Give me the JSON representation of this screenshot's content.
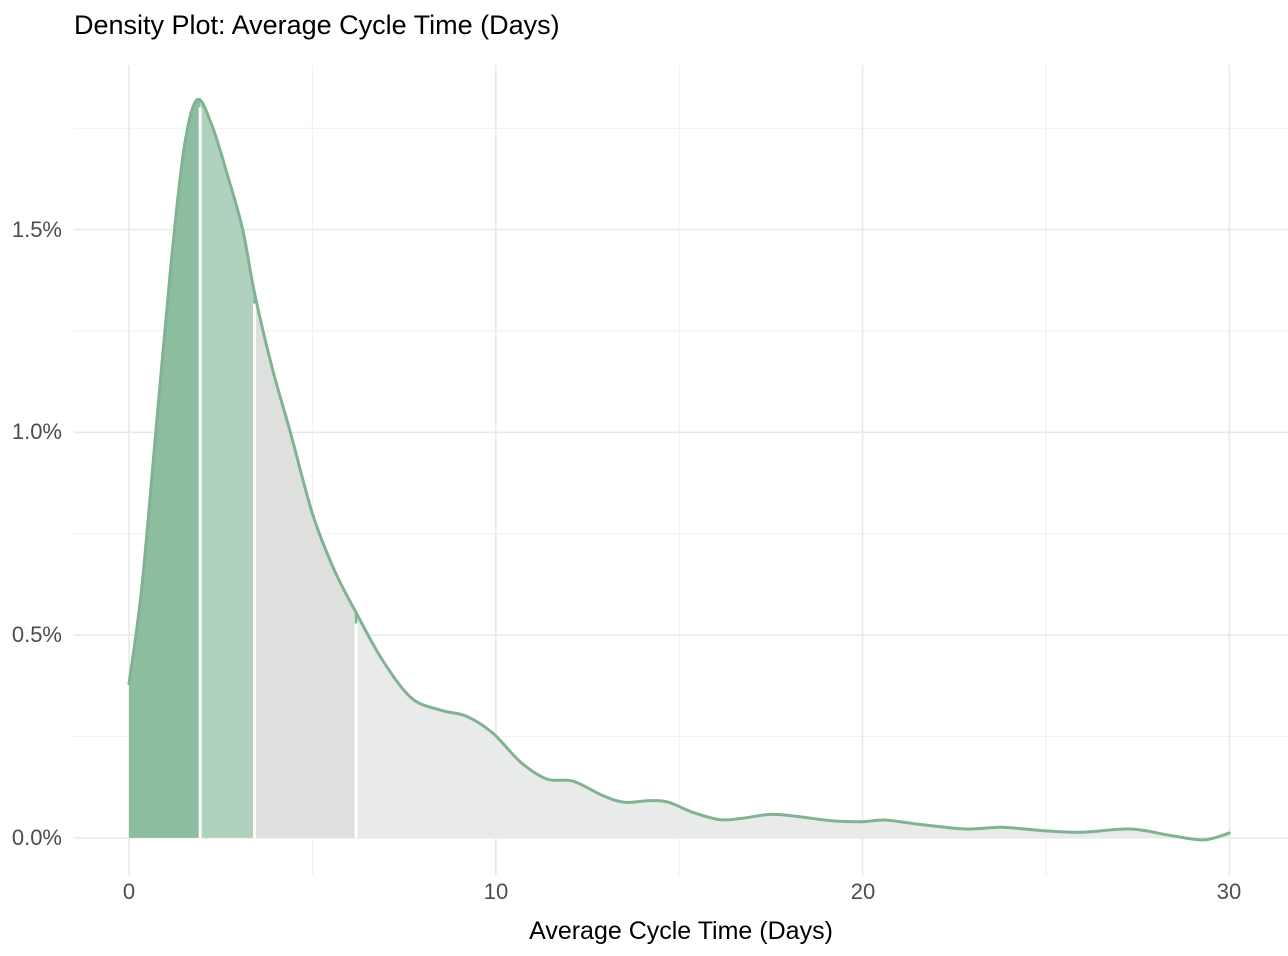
{
  "page": {
    "background": "#FFFFFF"
  },
  "chart_data": {
    "type": "area",
    "subtype": "density",
    "title": "Density Plot: Average Cycle Time (Days)",
    "xlabel": "Average Cycle Time (Days)",
    "ylabel": "",
    "legend": "none",
    "grid": "on",
    "xlim": [
      -1.5,
      31.6
    ],
    "ylim": [
      -0.094,
      1.906
    ],
    "x_ticks": [
      {
        "value": 0,
        "label": "0"
      },
      {
        "value": 10,
        "label": "10"
      },
      {
        "value": 20,
        "label": "20"
      },
      {
        "value": 30,
        "label": "30"
      }
    ],
    "x_minor_ticks": [
      5,
      15,
      25
    ],
    "y_ticks": [
      {
        "value": 0,
        "label": "0.0%"
      },
      {
        "value": 0.5,
        "label": "0.5%"
      },
      {
        "value": 1.0,
        "label": "1.0%"
      },
      {
        "value": 1.5,
        "label": "1.5%"
      }
    ],
    "y_minor_ticks": [
      0.25,
      0.75,
      1.25,
      1.75
    ],
    "y_unit": "percent",
    "x_unit": "days",
    "curve": [
      [
        0,
        0.38
      ],
      [
        0.35,
        0.62
      ],
      [
        0.75,
        1.02
      ],
      [
        1.15,
        1.42
      ],
      [
        1.5,
        1.7
      ],
      [
        1.85,
        1.82
      ],
      [
        2.25,
        1.76
      ],
      [
        2.7,
        1.63
      ],
      [
        3.1,
        1.5
      ],
      [
        3.42,
        1.345
      ],
      [
        3.9,
        1.16
      ],
      [
        4.4,
        1.0
      ],
      [
        5.0,
        0.8
      ],
      [
        5.6,
        0.66
      ],
      [
        6.19,
        0.556
      ],
      [
        6.9,
        0.44
      ],
      [
        7.7,
        0.345
      ],
      [
        8.5,
        0.315
      ],
      [
        9.2,
        0.3
      ],
      [
        9.9,
        0.26
      ],
      [
        10.7,
        0.185
      ],
      [
        11.4,
        0.145
      ],
      [
        12.1,
        0.14
      ],
      [
        12.9,
        0.105
      ],
      [
        13.5,
        0.088
      ],
      [
        14.2,
        0.092
      ],
      [
        14.7,
        0.088
      ],
      [
        15.4,
        0.062
      ],
      [
        16.1,
        0.045
      ],
      [
        16.7,
        0.048
      ],
      [
        17.5,
        0.058
      ],
      [
        18.2,
        0.053
      ],
      [
        19.2,
        0.042
      ],
      [
        20.0,
        0.04
      ],
      [
        20.6,
        0.044
      ],
      [
        21.5,
        0.034
      ],
      [
        22.8,
        0.022
      ],
      [
        23.8,
        0.026
      ],
      [
        24.9,
        0.018
      ],
      [
        26.0,
        0.014
      ],
      [
        27.3,
        0.022
      ],
      [
        28.4,
        0.006
      ],
      [
        29.3,
        -0.005
      ],
      [
        30,
        0.012
      ]
    ],
    "peak": {
      "x": 1.85,
      "density": 1.82
    },
    "segments": [
      {
        "name": "band-1",
        "from": 0,
        "to": 1.94,
        "color": "#8DBD9F"
      },
      {
        "name": "band-2",
        "from": 1.94,
        "to": 3.42,
        "color": "#B0D1BC"
      },
      {
        "name": "band-3",
        "from": 3.42,
        "to": 6.19,
        "color": "#DEE0DD"
      },
      {
        "name": "band-4",
        "from": 6.19,
        "to": 30,
        "color": "#E9EBEA"
      }
    ],
    "separators": [
      {
        "x": 1.94,
        "notch": false
      },
      {
        "x": 3.42,
        "notch": true
      },
      {
        "x": 6.19,
        "notch": true
      }
    ],
    "colors": {
      "line": "#81B293",
      "separator": "#FFFFFF",
      "grid_major": "#E9E9E9",
      "grid_minor": "#F1F1F1",
      "axis_text": "#4D4D4D",
      "title_text": "#000000"
    }
  }
}
